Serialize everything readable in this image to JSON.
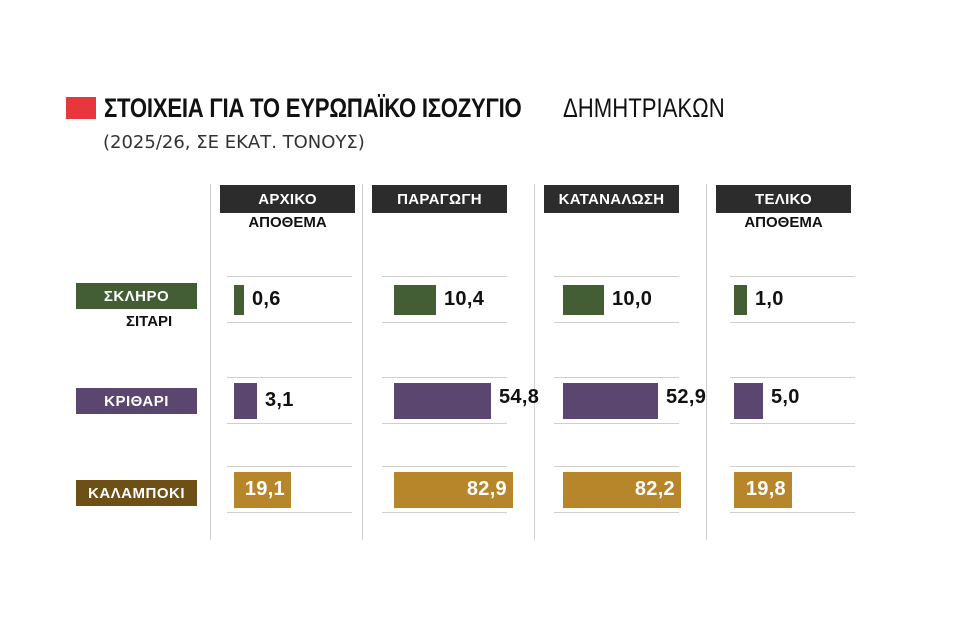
{
  "title": {
    "bold": "ΣΤΟΙΧΕΙΑ ΓΙΑ ΤΟ ΕΥΡΩΠΑΪΚΟ ΙΣΟΖΥΓΙΟ",
    "light": " ΔΗΜΗΤΡΙΑΚΩΝ",
    "subtitle": "(2025/26, ΣΕ ΕΚΑΤ. ΤΟΝΟΥΣ)",
    "accent_color": "#e8373c"
  },
  "chart_data": {
    "type": "bar",
    "title": "ΣΤΟΙΧΕΙΑ ΓΙΑ ΤΟ ΕΥΡΩΠΑΪΚΟ ΙΣΟΖΥΓΙΟ ΔΗΜΗΤΡΙΑΚΩΝ",
    "subtitle": "(2025/26, ΣΕ ΕΚΑΤ. ΤΟΝΟΥΣ)",
    "columns": [
      {
        "line1": "ΑΡΧΙΚΟ",
        "line2": "ΑΠΟΘΕΜΑ"
      },
      {
        "line1": "ΠΑΡΑΓΩΓΗ",
        "line2": ""
      },
      {
        "line1": "ΚΑΤΑΝΑΛΩΣΗ",
        "line2": ""
      },
      {
        "line1": "ΤΕΛΙΚΟ",
        "line2": "ΑΠΟΘΕΜΑ"
      }
    ],
    "series": [
      {
        "line1": "ΣΚΛΗΡΟ",
        "line2": "ΣΙΤΑΡΙ",
        "color": "#435d35",
        "values": [
          0.6,
          10.4,
          10.0,
          1.0
        ],
        "labels": [
          "0,6",
          "10,4",
          "10,0",
          "1,0"
        ]
      },
      {
        "line1": "ΚΡΙΘΑΡΙ",
        "line2": "",
        "color": "#5b4670",
        "values": [
          3.1,
          54.8,
          52.9,
          5.0
        ],
        "labels": [
          "3,1",
          "54,8",
          "52,9",
          "5,0"
        ]
      },
      {
        "line1": "ΚΑΛΑΜΠΟΚΙ",
        "line2": "",
        "color": "#b8862a",
        "values": [
          19.1,
          82.9,
          82.2,
          19.8
        ],
        "labels": [
          "19,1",
          "82,9",
          "82,2",
          "19,8"
        ]
      }
    ],
    "label_bg_colors": [
      "#435d35",
      "#5b4670",
      "#6e5016"
    ],
    "value_label_placement": [
      "outside",
      "outside",
      "inside"
    ],
    "bar_scale": "sqrt"
  }
}
